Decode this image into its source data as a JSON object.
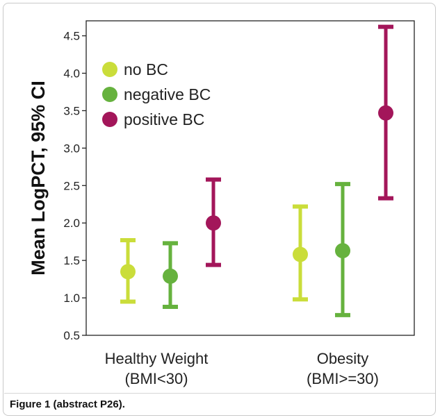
{
  "caption": "Figure 1 (abstract P26).",
  "chart_data": {
    "type": "errorbar",
    "ylabel": "Mean LogPCT, 95% CI",
    "xlabel": "",
    "ylim": [
      0.5,
      4.7
    ],
    "yticks": [
      0.5,
      1.0,
      1.5,
      2.0,
      2.5,
      3.0,
      3.5,
      4.0,
      4.5
    ],
    "ytick_labels": [
      "0.5",
      "1.0",
      "1.5",
      "2.0",
      "2.5",
      "3.0",
      "3.5",
      "4.0",
      "4.5"
    ],
    "categories": [
      {
        "line1": "Healthy Weight",
        "line2": "(BMI<30)"
      },
      {
        "line1": "Obesity",
        "line2": "(BMI>=30)"
      }
    ],
    "legend_position": "top-left",
    "grid": false,
    "series": [
      {
        "name": "no BC",
        "color": "#cadd3a",
        "points": [
          {
            "mean": 1.35,
            "lower": 0.95,
            "upper": 1.77
          },
          {
            "mean": 1.58,
            "lower": 0.98,
            "upper": 2.22
          }
        ]
      },
      {
        "name": "negative BC",
        "color": "#66b23e",
        "points": [
          {
            "mean": 1.29,
            "lower": 0.88,
            "upper": 1.73
          },
          {
            "mean": 1.63,
            "lower": 0.77,
            "upper": 2.52
          }
        ]
      },
      {
        "name": "positive BC",
        "color": "#a3165a",
        "points": [
          {
            "mean": 2.0,
            "lower": 1.44,
            "upper": 2.58
          },
          {
            "mean": 3.47,
            "lower": 2.33,
            "upper": 4.62
          }
        ]
      }
    ]
  }
}
